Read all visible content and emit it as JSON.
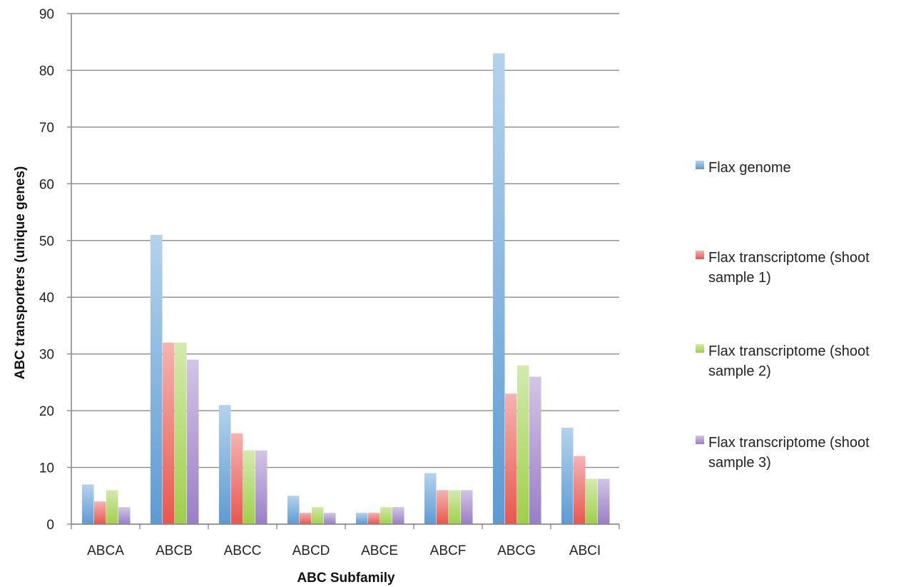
{
  "chart_data": {
    "type": "bar",
    "title": "",
    "xlabel": "ABC Subfamily",
    "ylabel": "ABC transporters (unique genes)",
    "ylim": [
      0,
      90
    ],
    "yticks": [
      0,
      10,
      20,
      30,
      40,
      50,
      60,
      70,
      80,
      90
    ],
    "grid": true,
    "legend_position": "right",
    "categories": [
      "ABCA",
      "ABCB",
      "ABCC",
      "ABCD",
      "ABCE",
      "ABCF",
      "ABCG",
      "ABCI"
    ],
    "series": [
      {
        "name": "Flax genome",
        "name_lines": [
          "Flax genome"
        ],
        "color": "#5b9bd5",
        "values": [
          7,
          51,
          21,
          5,
          2,
          9,
          83,
          17
        ]
      },
      {
        "name": "Flax transcriptome (shoot sample 1)",
        "name_lines": [
          "Flax transcriptome (shoot",
          "sample 1)"
        ],
        "color": "#e8564f",
        "values": [
          4,
          32,
          16,
          2,
          2,
          6,
          23,
          12
        ]
      },
      {
        "name": "Flax transcriptome (shoot sample 2)",
        "name_lines": [
          "Flax transcriptome (shoot",
          "sample 2)"
        ],
        "color": "#9ed048",
        "values": [
          6,
          32,
          13,
          3,
          3,
          6,
          28,
          8
        ]
      },
      {
        "name": "Flax transcriptome (shoot sample 3)",
        "name_lines": [
          "Flax transcriptome (shoot",
          "sample 3)"
        ],
        "color": "#9a7ec7",
        "values": [
          3,
          29,
          13,
          2,
          3,
          6,
          26,
          8
        ]
      }
    ]
  }
}
